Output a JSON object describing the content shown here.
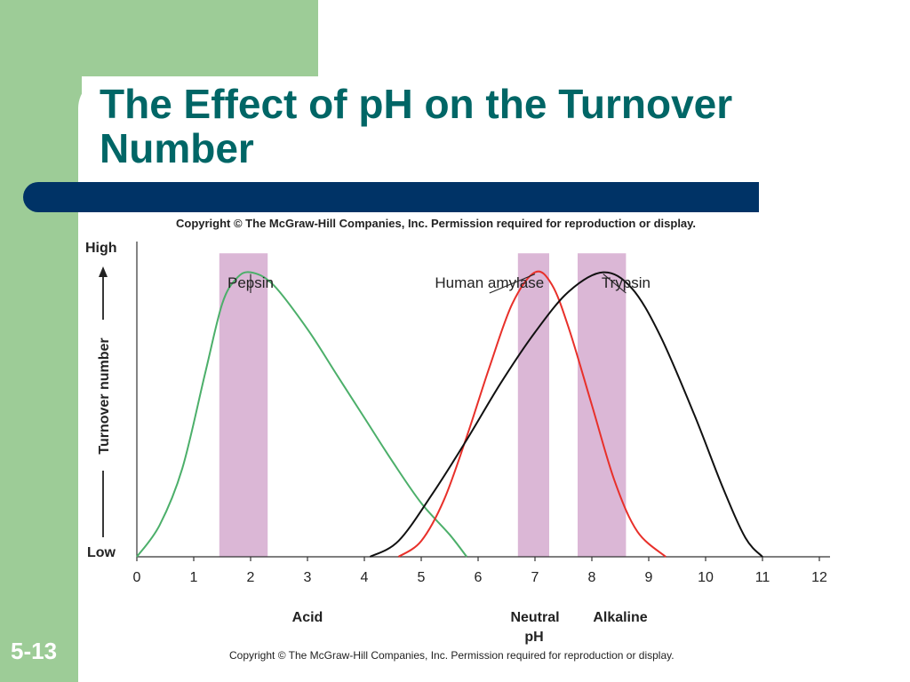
{
  "slide": {
    "title": "The Effect of pH on the Turnover Number",
    "copyright_top": "Copyright © The McGraw-Hill Companies, Inc. Permission required for reproduction or display.",
    "copyright_bottom": "Copyright © The McGraw-Hill Companies, Inc. Permission required for reproduction or display.",
    "slide_number": "5-13"
  },
  "colors": {
    "green": "#9dcc97",
    "title": "#006666",
    "bar": "#003366",
    "pepsin": "#4caf6a",
    "amylase": "#e8302a",
    "trypsin": "#111111",
    "band": "#dbb7d6"
  },
  "chart_data": {
    "type": "line",
    "x_ticks": [
      0,
      1,
      2,
      3,
      4,
      5,
      6,
      7,
      8,
      9,
      10,
      11,
      12
    ],
    "xlim": [
      0,
      12
    ],
    "ylim": [
      0,
      1
    ],
    "y_axis": {
      "label": "Turnover number",
      "high_label": "High",
      "low_label": "Low"
    },
    "x_region_labels": [
      {
        "text": "Acid",
        "x": 3
      },
      {
        "text": "Neutral",
        "x": 7
      },
      {
        "text": "Alkaline",
        "x": 8.5
      }
    ],
    "x_axis_label": "pH",
    "grid": false,
    "series": [
      {
        "name": "Pepsin",
        "color": "#4caf6a",
        "points": [
          [
            0,
            0
          ],
          [
            0.4,
            0.1
          ],
          [
            0.8,
            0.28
          ],
          [
            1.2,
            0.58
          ],
          [
            1.5,
            0.8
          ],
          [
            1.75,
            0.88
          ],
          [
            2,
            0.9
          ],
          [
            2.4,
            0.86
          ],
          [
            3,
            0.72
          ],
          [
            3.5,
            0.58
          ],
          [
            4,
            0.44
          ],
          [
            4.5,
            0.3
          ],
          [
            5,
            0.17
          ],
          [
            5.5,
            0.07
          ],
          [
            5.8,
            0
          ]
        ],
        "optimum_band": [
          1.45,
          2.3
        ],
        "label_x": 2
      },
      {
        "name": "Human amylase",
        "color": "#e8302a",
        "points": [
          [
            4.6,
            0
          ],
          [
            5,
            0.05
          ],
          [
            5.4,
            0.18
          ],
          [
            5.8,
            0.38
          ],
          [
            6.2,
            0.6
          ],
          [
            6.6,
            0.8
          ],
          [
            7,
            0.9
          ],
          [
            7.3,
            0.86
          ],
          [
            7.6,
            0.72
          ],
          [
            8,
            0.48
          ],
          [
            8.4,
            0.24
          ],
          [
            8.8,
            0.08
          ],
          [
            9.3,
            0
          ]
        ],
        "optimum_band": [
          6.7,
          7.25
        ],
        "label_x": 6.2
      },
      {
        "name": "Trypsin",
        "color": "#111111",
        "points": [
          [
            4.1,
            0
          ],
          [
            4.6,
            0.05
          ],
          [
            5.2,
            0.2
          ],
          [
            5.8,
            0.37
          ],
          [
            6.4,
            0.55
          ],
          [
            7,
            0.71
          ],
          [
            7.6,
            0.84
          ],
          [
            8.2,
            0.9
          ],
          [
            8.7,
            0.85
          ],
          [
            9.2,
            0.7
          ],
          [
            9.8,
            0.45
          ],
          [
            10.3,
            0.22
          ],
          [
            10.7,
            0.06
          ],
          [
            11,
            0
          ]
        ],
        "optimum_band": [
          7.75,
          8.6
        ],
        "label_x": 8.6
      }
    ]
  }
}
